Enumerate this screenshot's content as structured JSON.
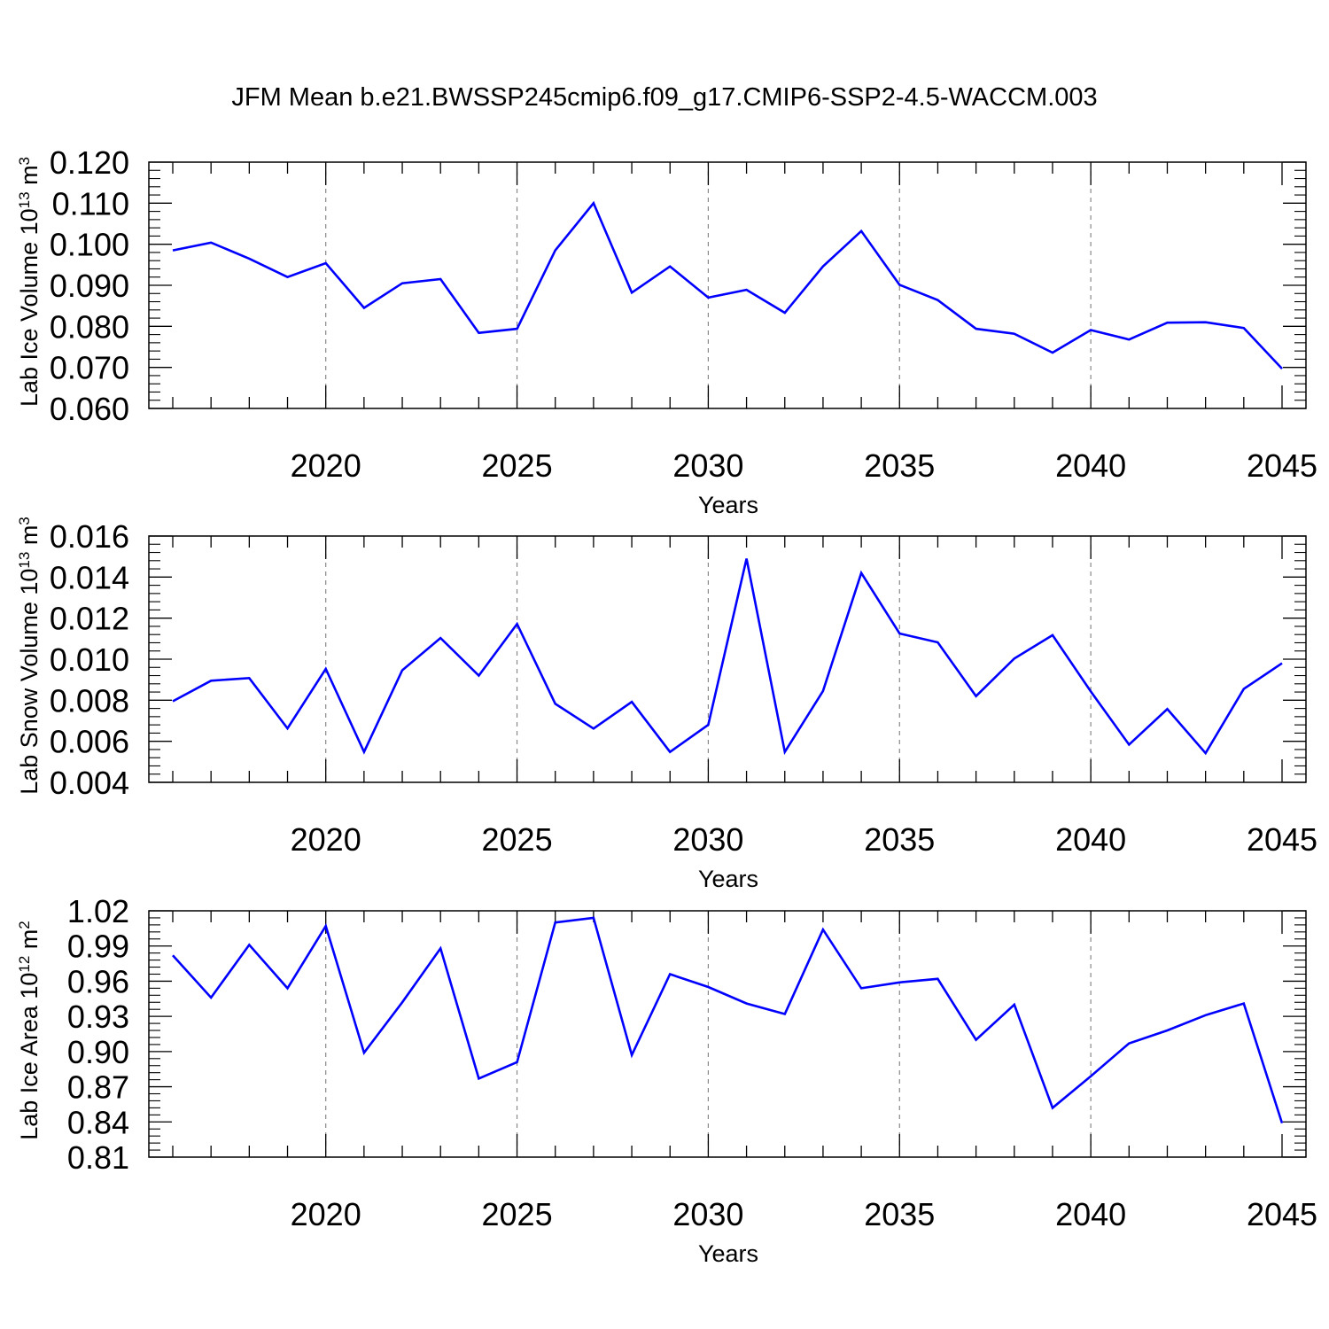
{
  "title": "JFM Mean b.e21.BWSSP245cmip6.f09_g17.CMIP6-SSP2-4.5-WACCM.003",
  "line_color": "#0000ff",
  "chart_data": [
    {
      "type": "line",
      "ylabel": {
        "main": "Lab Ice Volume 10",
        "exp": "13",
        "unit": " m",
        "unit_exp": "3"
      },
      "xlabel": "Years",
      "xlim": [
        2016,
        2045
      ],
      "ylim": [
        0.06,
        0.12
      ],
      "x_ticks": [
        "2020",
        "2025",
        "2030",
        "2035",
        "2040",
        "2045"
      ],
      "y_ticks": [
        "0.060",
        "0.070",
        "0.080",
        "0.090",
        "0.100",
        "0.110",
        "0.120"
      ],
      "grid": "vertical dashed at major x ticks",
      "x": [
        2016,
        2017,
        2018,
        2019,
        2020,
        2021,
        2022,
        2023,
        2024,
        2025,
        2026,
        2027,
        2028,
        2029,
        2030,
        2031,
        2032,
        2033,
        2034,
        2035,
        2036,
        2037,
        2038,
        2039,
        2040,
        2041,
        2042,
        2043,
        2044,
        2045
      ],
      "values": [
        0.0985,
        0.1004,
        0.0965,
        0.092,
        0.0954,
        0.0845,
        0.0905,
        0.0915,
        0.0784,
        0.0794,
        0.0985,
        0.11,
        0.0882,
        0.0946,
        0.087,
        0.0889,
        0.0833,
        0.0946,
        0.1032,
        0.0901,
        0.0864,
        0.0794,
        0.0782,
        0.0736,
        0.0791,
        0.0768,
        0.0809,
        0.081,
        0.0796,
        0.0697
      ]
    },
    {
      "type": "line",
      "ylabel": {
        "main": "Lab Snow Volume 10",
        "exp": "13",
        "unit": " m",
        "unit_exp": "3"
      },
      "xlabel": "Years",
      "xlim": [
        2016,
        2045
      ],
      "ylim": [
        0.004,
        0.016
      ],
      "x_ticks": [
        "2020",
        "2025",
        "2030",
        "2035",
        "2040",
        "2045"
      ],
      "y_ticks": [
        "0.004",
        "0.006",
        "0.008",
        "0.010",
        "0.012",
        "0.014",
        "0.016"
      ],
      "grid": "vertical dashed at major x ticks",
      "x": [
        2016,
        2017,
        2018,
        2019,
        2020,
        2021,
        2022,
        2023,
        2024,
        2025,
        2026,
        2027,
        2028,
        2029,
        2030,
        2031,
        2032,
        2033,
        2034,
        2035,
        2036,
        2037,
        2038,
        2039,
        2040,
        2041,
        2042,
        2043,
        2044,
        2045
      ],
      "values": [
        0.00795,
        0.00895,
        0.00908,
        0.00663,
        0.00953,
        0.00548,
        0.00946,
        0.01103,
        0.0092,
        0.01172,
        0.00783,
        0.00662,
        0.00792,
        0.00548,
        0.0068,
        0.0149,
        0.00548,
        0.00845,
        0.0142,
        0.01125,
        0.01082,
        0.0082,
        0.01003,
        0.01117,
        0.00843,
        0.00584,
        0.00757,
        0.00542,
        0.00855,
        0.0098
      ]
    },
    {
      "type": "line",
      "ylabel": {
        "main": "Lab Ice Area 10",
        "exp": "12",
        "unit": " m",
        "unit_exp": "2"
      },
      "xlabel": "Years",
      "xlim": [
        2016,
        2045
      ],
      "ylim": [
        0.81,
        1.02
      ],
      "x_ticks": [
        "2020",
        "2025",
        "2030",
        "2035",
        "2040",
        "2045"
      ],
      "y_ticks": [
        "0.81",
        "0.84",
        "0.87",
        "0.90",
        "0.93",
        "0.96",
        "0.99",
        "1.02"
      ],
      "grid": "vertical dashed at major x ticks",
      "x": [
        2016,
        2017,
        2018,
        2019,
        2020,
        2021,
        2022,
        2023,
        2024,
        2025,
        2026,
        2027,
        2028,
        2029,
        2030,
        2031,
        2032,
        2033,
        2034,
        2035,
        2036,
        2037,
        2038,
        2039,
        2040,
        2041,
        2042,
        2043,
        2044,
        2045
      ],
      "values": [
        0.982,
        0.946,
        0.991,
        0.954,
        1.007,
        0.899,
        0.942,
        0.988,
        0.877,
        0.891,
        1.01,
        1.014,
        0.897,
        0.966,
        0.955,
        0.941,
        0.932,
        1.004,
        0.954,
        0.959,
        0.962,
        0.91,
        0.94,
        0.852,
        0.879,
        0.907,
        0.918,
        0.931,
        0.941,
        0.839
      ]
    }
  ]
}
